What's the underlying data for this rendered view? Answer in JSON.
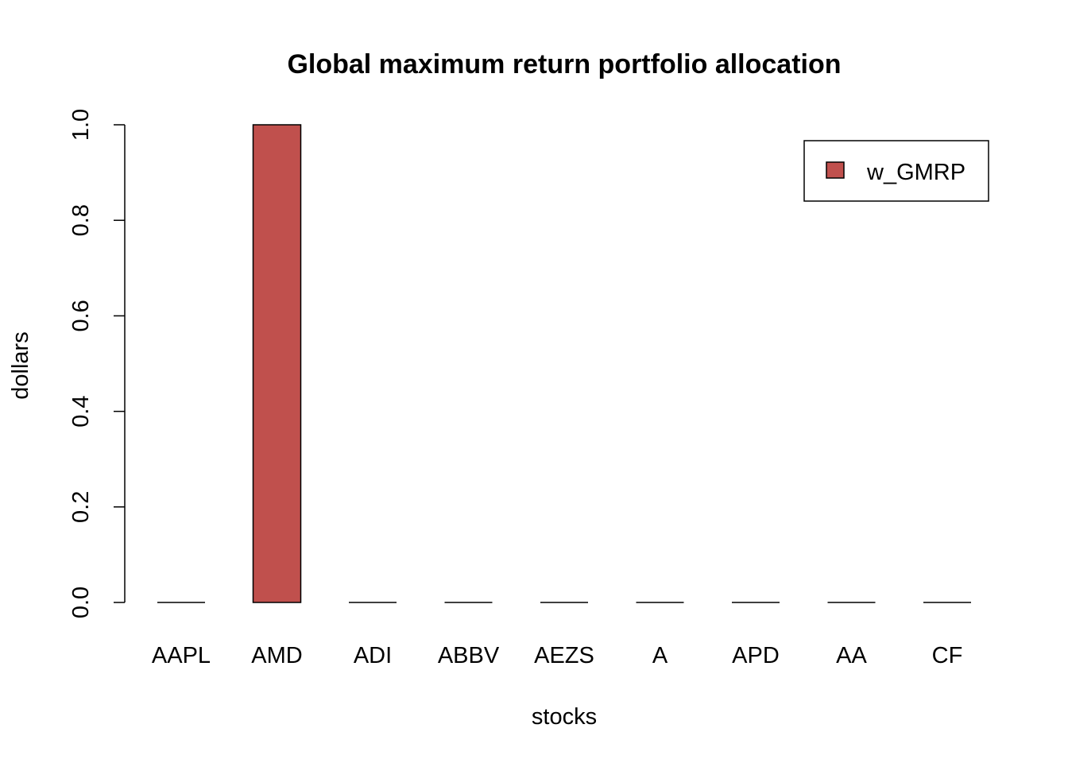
{
  "chart_data": {
    "type": "bar",
    "title": "Global maximum return portfolio allocation",
    "xlabel": "stocks",
    "ylabel": "dollars",
    "categories": [
      "AAPL",
      "AMD",
      "ADI",
      "ABBV",
      "AEZS",
      "A",
      "APD",
      "AA",
      "CF"
    ],
    "series": [
      {
        "name": "w_GMRP",
        "values": [
          0,
          1,
          0,
          0,
          0,
          0,
          0,
          0,
          0
        ],
        "color": "#c0504d"
      }
    ],
    "ylim": [
      0,
      1
    ],
    "yticks": [
      "0.0",
      "0.2",
      "0.4",
      "0.6",
      "0.8",
      "1.0"
    ],
    "legend": {
      "position": "top-right"
    },
    "grid": false
  }
}
